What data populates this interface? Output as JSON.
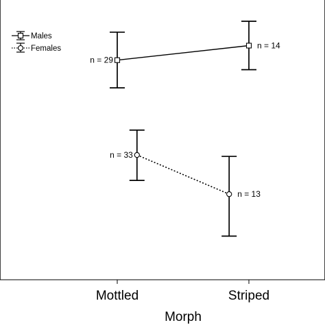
{
  "chart_data": {
    "type": "line",
    "title": "",
    "xlabel": "Morph",
    "ylabel": "",
    "categories": [
      "Mottled",
      "Striped"
    ],
    "ylim": [
      0,
      100
    ],
    "y_ticks_shown": false,
    "grid": false,
    "legend_position": "top-left",
    "series": [
      {
        "name": "Males",
        "marker": "square",
        "line_style": "solid",
        "x_offset": [
          0,
          0
        ],
        "values": [
          78.5,
          83.7
        ],
        "err_low": [
          68.6,
          75.1
        ],
        "err_high": [
          88.5,
          92.4
        ],
        "n_labels": [
          "n = 29",
          "n = 14"
        ],
        "n_label_side": [
          "left",
          "right"
        ]
      },
      {
        "name": "Females",
        "marker": "circle",
        "line_style": "dotted",
        "x_offset": [
          0.15,
          -0.15
        ],
        "values": [
          44.6,
          30.6
        ],
        "err_low": [
          35.5,
          15.6
        ],
        "err_high": [
          53.5,
          44.1
        ],
        "n_labels": [
          "n = 33",
          "n = 13"
        ],
        "n_label_side": [
          "left",
          "right"
        ]
      }
    ]
  }
}
